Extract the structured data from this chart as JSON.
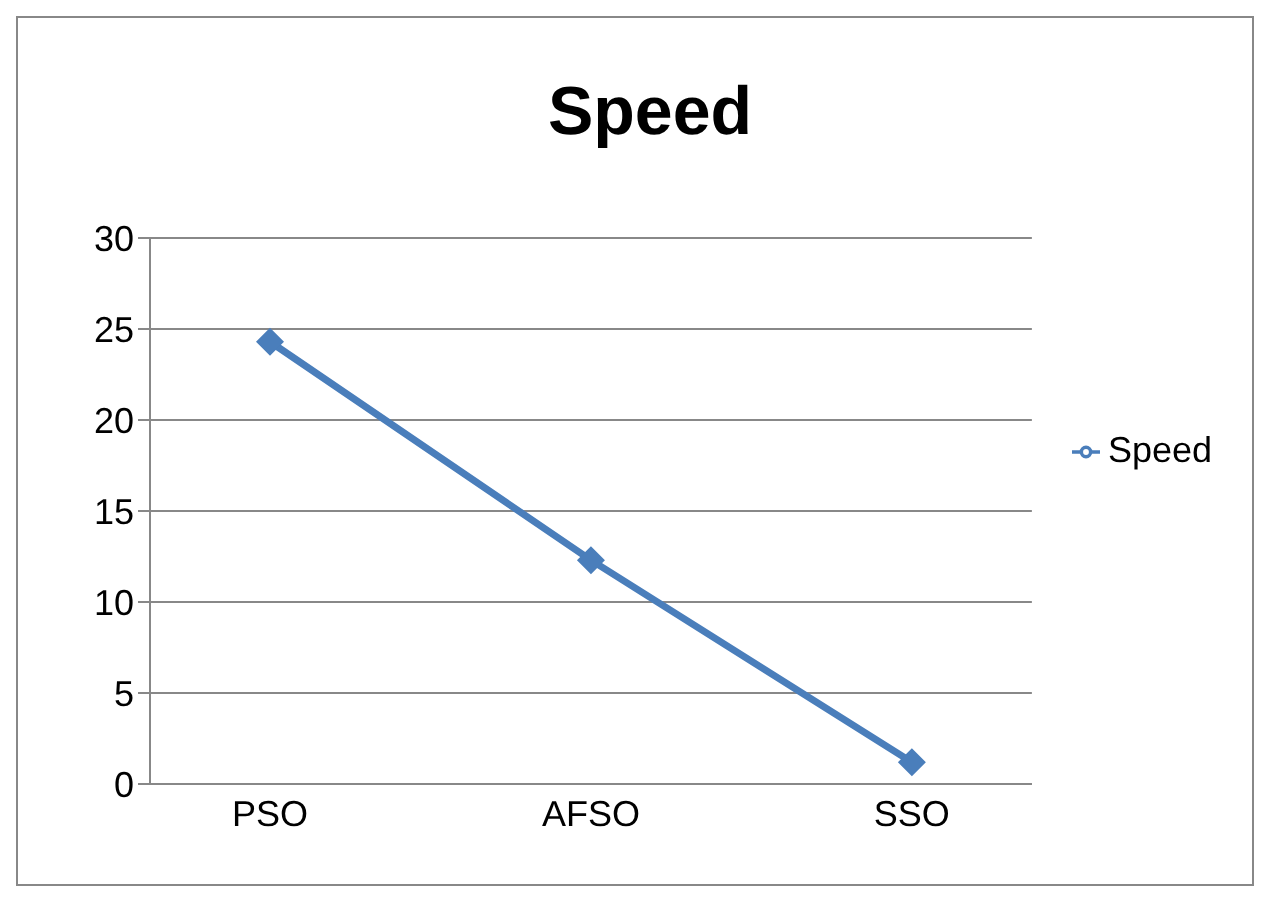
{
  "chart_data": {
    "type": "line",
    "title": "Speed",
    "categories": [
      "PSO",
      "AFSO",
      "SSO"
    ],
    "series": [
      {
        "name": "Speed",
        "color": "#4a7ebb",
        "values": [
          24.3,
          12.3,
          1.2
        ]
      }
    ],
    "ylim": [
      0,
      30
    ],
    "yticks": [
      0,
      5,
      10,
      15,
      20,
      25,
      30
    ],
    "grid": "y",
    "legend": "right",
    "marker": "diamond",
    "line_style": "solid"
  }
}
